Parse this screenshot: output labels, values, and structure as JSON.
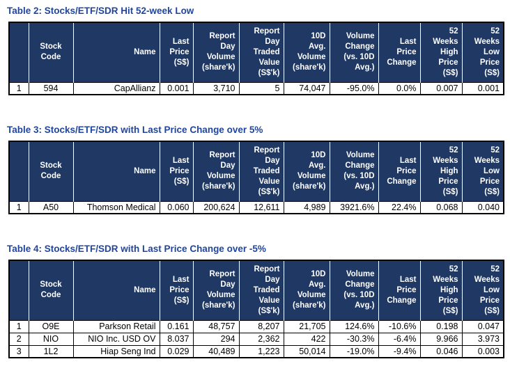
{
  "colors": {
    "header_bg": "#1F3864",
    "header_text": "#FFFFFF",
    "title_text": "#1F459E",
    "body_text": "#000000",
    "border": "#000000"
  },
  "columns": [
    "",
    "Stock\nCode",
    "Name",
    "Last\nPrice\n(S$)",
    "Report\nDay\nVolume\n(share'k)",
    "Report\nDay\nTraded\nValue\n(S$'k)",
    "10D\nAvg.\nVolume\n(share'k)",
    "Volume\nChange\n(vs. 10D\nAvg.)",
    "Last\nPrice\nChange",
    "52\nWeeks\nHigh\nPrice\n(S$)",
    "52\nWeeks\nLow\nPrice\n(S$)"
  ],
  "tables": [
    {
      "title": "Table 2: Stocks/ETF/SDR Hit 52-week Low",
      "rows": [
        [
          "1",
          "594",
          "CapAllianz",
          "0.001",
          "3,710",
          "5",
          "74,047",
          "-95.0%",
          "0.0%",
          "0.007",
          "0.001"
        ]
      ]
    },
    {
      "title": "Table 3: Stocks/ETF/SDR with Last Price Change over 5%",
      "rows": [
        [
          "1",
          "A50",
          "Thomson Medical",
          "0.060",
          "200,624",
          "12,611",
          "4,989",
          "3921.6%",
          "22.4%",
          "0.068",
          "0.040"
        ]
      ]
    },
    {
      "title": "Table 4: Stocks/ETF/SDR with Last Price Change over -5%",
      "rows": [
        [
          "1",
          "O9E",
          "Parkson Retail",
          "0.161",
          "48,757",
          "8,207",
          "21,705",
          "124.6%",
          "-10.6%",
          "0.198",
          "0.047"
        ],
        [
          "2",
          "NIO",
          "NIO Inc. USD OV",
          "8.037",
          "294",
          "2,362",
          "422",
          "-30.3%",
          "-6.4%",
          "9.966",
          "3.973"
        ],
        [
          "3",
          "1L2",
          "Hiap Seng Ind",
          "0.029",
          "40,489",
          "1,223",
          "50,014",
          "-19.0%",
          "-9.4%",
          "0.046",
          "0.003"
        ]
      ]
    }
  ]
}
